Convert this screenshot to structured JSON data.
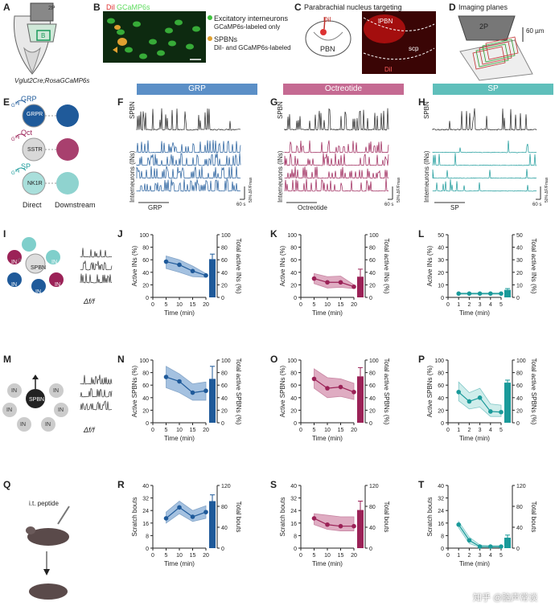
{
  "panel_letters": [
    "A",
    "B",
    "C",
    "D",
    "E",
    "F",
    "G",
    "H",
    "I",
    "J",
    "K",
    "L",
    "M",
    "N",
    "O",
    "P",
    "Q",
    "R",
    "S",
    "T"
  ],
  "colors": {
    "grp": "#1f5a9a",
    "grp_light": "#5b8fc7",
    "oct": "#9b2257",
    "oct_light": "#c56a92",
    "sp": "#1a9a9a",
    "sp_light": "#7fcfcb",
    "sp_fill": "#a9dfdb",
    "spbn": "#222222",
    "grp_hdr": "#5b8fc7",
    "oct_hdr": "#c56a92",
    "sp_hdr": "#5fbfbb"
  },
  "panelA": {
    "box": "2P",
    "field": "B",
    "genotype": "Vglut2Cre;RosaGCaMP6s"
  },
  "panelB": {
    "dii": "DiI",
    "gcamp": "GCaMP6s",
    "legend1_title": "Excitatory interneurons",
    "legend1_sub": "GCaMP6s-labeled only",
    "legend2_title": "SPBNs",
    "legend2_sub": "DiI- and GCaMP6s-labeled"
  },
  "panelC": {
    "title": "Parabrachial nucleus targeting",
    "dii": "DiI",
    "pbn": "PBN",
    "lpbn": "lPBN",
    "scp": "scp",
    "dii2": "DiI"
  },
  "panelD": {
    "title": "Imaging planes",
    "box": "2P",
    "depth": "60 µm"
  },
  "headers": {
    "grp": "GRP",
    "oct": "Octreotide",
    "sp": "SP"
  },
  "panelE": {
    "rows": [
      {
        "peptide": "GRP",
        "receptor": "GRPR",
        "gq": "G",
        "gq2": "i/q"
      },
      {
        "peptide": "Oct",
        "receptor": "SSTR",
        "gq": "G",
        "gq2": "i/q"
      },
      {
        "peptide": "SP",
        "receptor": "NK1R",
        "gq": "G",
        "gq2": "i/q"
      }
    ],
    "direct": "Direct",
    "downstream": "Downstream"
  },
  "traces": {
    "spbn": "SPBN",
    "interneurons": "Interneurons (INs)",
    "scale": "50% ΔF/Fmax",
    "time": "60 s",
    "grp": "GRP",
    "oct": "Octreotide",
    "sp": "SP"
  },
  "panelI": {
    "center": "SPBN",
    "in": "IN",
    "g": "G",
    "df": "Δf/f"
  },
  "panelM": {
    "center": "SPBN",
    "in": "IN",
    "df": "Δf/f"
  },
  "panelQ": {
    "label": "i.t. peptide"
  },
  "watermark": "知乎 @脑声常谈",
  "chart_data": [
    {
      "panel": "J",
      "type": "line",
      "series": [
        {
          "values": [
            [
              5,
              57
            ],
            [
              10,
              52
            ],
            [
              15,
              42
            ],
            [
              20,
              35
            ]
          ]
        }
      ],
      "band": {
        "upper": [
          [
            5,
            66
          ],
          [
            10,
            60
          ],
          [
            15,
            50
          ],
          [
            20,
            38
          ]
        ],
        "lower": [
          [
            5,
            46
          ],
          [
            10,
            40
          ],
          [
            15,
            33
          ],
          [
            20,
            32
          ]
        ]
      },
      "bar": {
        "value": 61,
        "err": 8
      },
      "ylabel": "Active INs (%)",
      "y2label": "Total active INs (%)",
      "xlabel": "Time (min)",
      "xticks": [
        "0",
        "5",
        "10",
        "15",
        "20"
      ],
      "ylim": [
        0,
        100
      ],
      "color": "grp"
    },
    {
      "panel": "K",
      "type": "line",
      "series": [
        {
          "values": [
            [
              5,
              30
            ],
            [
              10,
              24
            ],
            [
              15,
              24
            ],
            [
              20,
              17
            ]
          ]
        }
      ],
      "band": {
        "upper": [
          [
            5,
            38
          ],
          [
            10,
            33
          ],
          [
            15,
            34
          ],
          [
            20,
            20
          ]
        ],
        "lower": [
          [
            5,
            22
          ],
          [
            10,
            15
          ],
          [
            15,
            16
          ],
          [
            20,
            14
          ]
        ]
      },
      "bar": {
        "value": 33,
        "err": 12
      },
      "ylabel": "Active INs (%)",
      "y2label": "Total active INs (%)",
      "xlabel": "Time (min)",
      "xticks": [
        "0",
        "5",
        "10",
        "15",
        "20"
      ],
      "ylim": [
        0,
        100
      ],
      "color": "oct"
    },
    {
      "panel": "L",
      "type": "line",
      "series": [
        {
          "values": [
            [
              1,
              3
            ],
            [
              2,
              3
            ],
            [
              3,
              3
            ],
            [
              4,
              3
            ],
            [
              5,
              3
            ]
          ]
        }
      ],
      "band": {
        "upper": [
          [
            1,
            3.5
          ],
          [
            2,
            3.5
          ],
          [
            3,
            3.5
          ],
          [
            4,
            3.5
          ],
          [
            5,
            3.5
          ]
        ],
        "lower": [
          [
            1,
            2.5
          ],
          [
            2,
            2.5
          ],
          [
            3,
            2.5
          ],
          [
            4,
            2.5
          ],
          [
            5,
            2.5
          ]
        ]
      },
      "bar": {
        "value": 6,
        "err": 1
      },
      "ylabel": "Active INs (%)",
      "y2label": "Total active INs (%)",
      "xlabel": "Time (min)",
      "xticks": [
        "0",
        "1",
        "2",
        "3",
        "4",
        "5"
      ],
      "ylim": [
        0,
        50
      ],
      "color": "sp"
    },
    {
      "panel": "N",
      "type": "line",
      "series": [
        {
          "values": [
            [
              5,
              73
            ],
            [
              10,
              66
            ],
            [
              15,
              48
            ],
            [
              20,
              51
            ]
          ]
        }
      ],
      "band": {
        "upper": [
          [
            5,
            90
          ],
          [
            10,
            78
          ],
          [
            15,
            62
          ],
          [
            20,
            65
          ]
        ],
        "lower": [
          [
            5,
            56
          ],
          [
            10,
            48
          ],
          [
            15,
            36
          ],
          [
            20,
            36
          ]
        ]
      },
      "bar": {
        "value": 70,
        "err": 20
      },
      "ylabel": "Active SPBNs (%)",
      "y2label": "Total active SPBNs (%)",
      "xlabel": "Time (min)",
      "xticks": [
        "0",
        "5",
        "10",
        "15",
        "20"
      ],
      "ylim": [
        0,
        100
      ],
      "color": "grp"
    },
    {
      "panel": "O",
      "type": "line",
      "series": [
        {
          "values": [
            [
              5,
              70
            ],
            [
              10,
              55
            ],
            [
              15,
              57
            ],
            [
              20,
              49
            ]
          ]
        }
      ],
      "band": {
        "upper": [
          [
            5,
            86
          ],
          [
            10,
            72
          ],
          [
            15,
            70
          ],
          [
            20,
            63
          ]
        ],
        "lower": [
          [
            5,
            55
          ],
          [
            10,
            40
          ],
          [
            15,
            42
          ],
          [
            20,
            37
          ]
        ]
      },
      "bar": {
        "value": 74,
        "err": 14
      },
      "ylabel": "Active SPBNs (%)",
      "y2label": "Total active SPBNs (%)",
      "xlabel": "Time (min)",
      "xticks": [
        "0",
        "5",
        "10",
        "15",
        "20"
      ],
      "ylim": [
        0,
        100
      ],
      "color": "oct"
    },
    {
      "panel": "P",
      "type": "line",
      "series": [
        {
          "values": [
            [
              1,
              49
            ],
            [
              2,
              34
            ],
            [
              3,
              40
            ],
            [
              4,
              18
            ],
            [
              5,
              17
            ]
          ]
        }
      ],
      "band": {
        "upper": [
          [
            1,
            65
          ],
          [
            2,
            48
          ],
          [
            3,
            55
          ],
          [
            4,
            30
          ],
          [
            5,
            28
          ]
        ],
        "lower": [
          [
            1,
            35
          ],
          [
            2,
            22
          ],
          [
            3,
            25
          ],
          [
            4,
            10
          ],
          [
            5,
            10
          ]
        ]
      },
      "bar": {
        "value": 64,
        "err": 4
      },
      "ylabel": "Active SPBNs (%)",
      "y2label": "Total active SPBNs (%)",
      "xlabel": "Time (min)",
      "xticks": [
        "0",
        "1",
        "2",
        "3",
        "4",
        "5"
      ],
      "ylim": [
        0,
        100
      ],
      "color": "sp"
    },
    {
      "panel": "R",
      "type": "line",
      "series": [
        {
          "values": [
            [
              5,
              19
            ],
            [
              10,
              26
            ],
            [
              15,
              20
            ],
            [
              20,
              23
            ]
          ]
        }
      ],
      "band": {
        "upper": [
          [
            5,
            23
          ],
          [
            10,
            30
          ],
          [
            15,
            24
          ],
          [
            20,
            27
          ]
        ],
        "lower": [
          [
            5,
            16
          ],
          [
            10,
            22
          ],
          [
            15,
            17
          ],
          [
            20,
            19
          ]
        ]
      },
      "bar": {
        "value": 90,
        "err": 12
      },
      "ylabel": "Scratch bouts",
      "y2label": "Total bouts",
      "xlabel": "Time (min)",
      "xticks": [
        "0",
        "5",
        "10",
        "15",
        "20"
      ],
      "ylim": [
        0,
        40
      ],
      "y2lim": [
        0,
        120
      ],
      "y2ticks": [
        "0",
        "40",
        "80",
        "120"
      ],
      "color": "grp"
    },
    {
      "panel": "S",
      "type": "line",
      "series": [
        {
          "values": [
            [
              5,
              19
            ],
            [
              10,
              15
            ],
            [
              15,
              14
            ],
            [
              20,
              14
            ]
          ]
        }
      ],
      "band": {
        "upper": [
          [
            5,
            22
          ],
          [
            10,
            21
          ],
          [
            15,
            20
          ],
          [
            20,
            20
          ]
        ],
        "lower": [
          [
            5,
            15
          ],
          [
            10,
            12
          ],
          [
            15,
            11
          ],
          [
            20,
            11
          ]
        ]
      },
      "bar": {
        "value": 73,
        "err": 17
      },
      "ylabel": "Scratch bouts",
      "y2label": "Total bouts",
      "xlabel": "Time (min)",
      "xticks": [
        "0",
        "5",
        "10",
        "15",
        "20"
      ],
      "ylim": [
        0,
        40
      ],
      "y2lim": [
        0,
        120
      ],
      "y2ticks": [
        "0",
        "40",
        "80",
        "120"
      ],
      "color": "oct"
    },
    {
      "panel": "T",
      "type": "line",
      "series": [
        {
          "values": [
            [
              1,
              15
            ],
            [
              2,
              5
            ],
            [
              3,
              1
            ],
            [
              4,
              1
            ],
            [
              5,
              1
            ]
          ]
        }
      ],
      "band": {
        "upper": [
          [
            1,
            17
          ],
          [
            2,
            7
          ],
          [
            3,
            2
          ],
          [
            4,
            1.5
          ],
          [
            5,
            1.5
          ]
        ],
        "lower": [
          [
            1,
            13
          ],
          [
            2,
            3
          ],
          [
            3,
            0.5
          ],
          [
            4,
            0.5
          ],
          [
            5,
            0.5
          ]
        ]
      },
      "bar": {
        "value": 20,
        "err": 5
      },
      "ylabel": "Scratch bouts",
      "y2label": "Total bouts",
      "xlabel": "Time (min)",
      "xticks": [
        "0",
        "1",
        "2",
        "3",
        "4",
        "5"
      ],
      "ylim": [
        0,
        40
      ],
      "y2lim": [
        0,
        120
      ],
      "y2ticks": [
        "0",
        "40",
        "80",
        "120"
      ],
      "color": "sp"
    }
  ]
}
